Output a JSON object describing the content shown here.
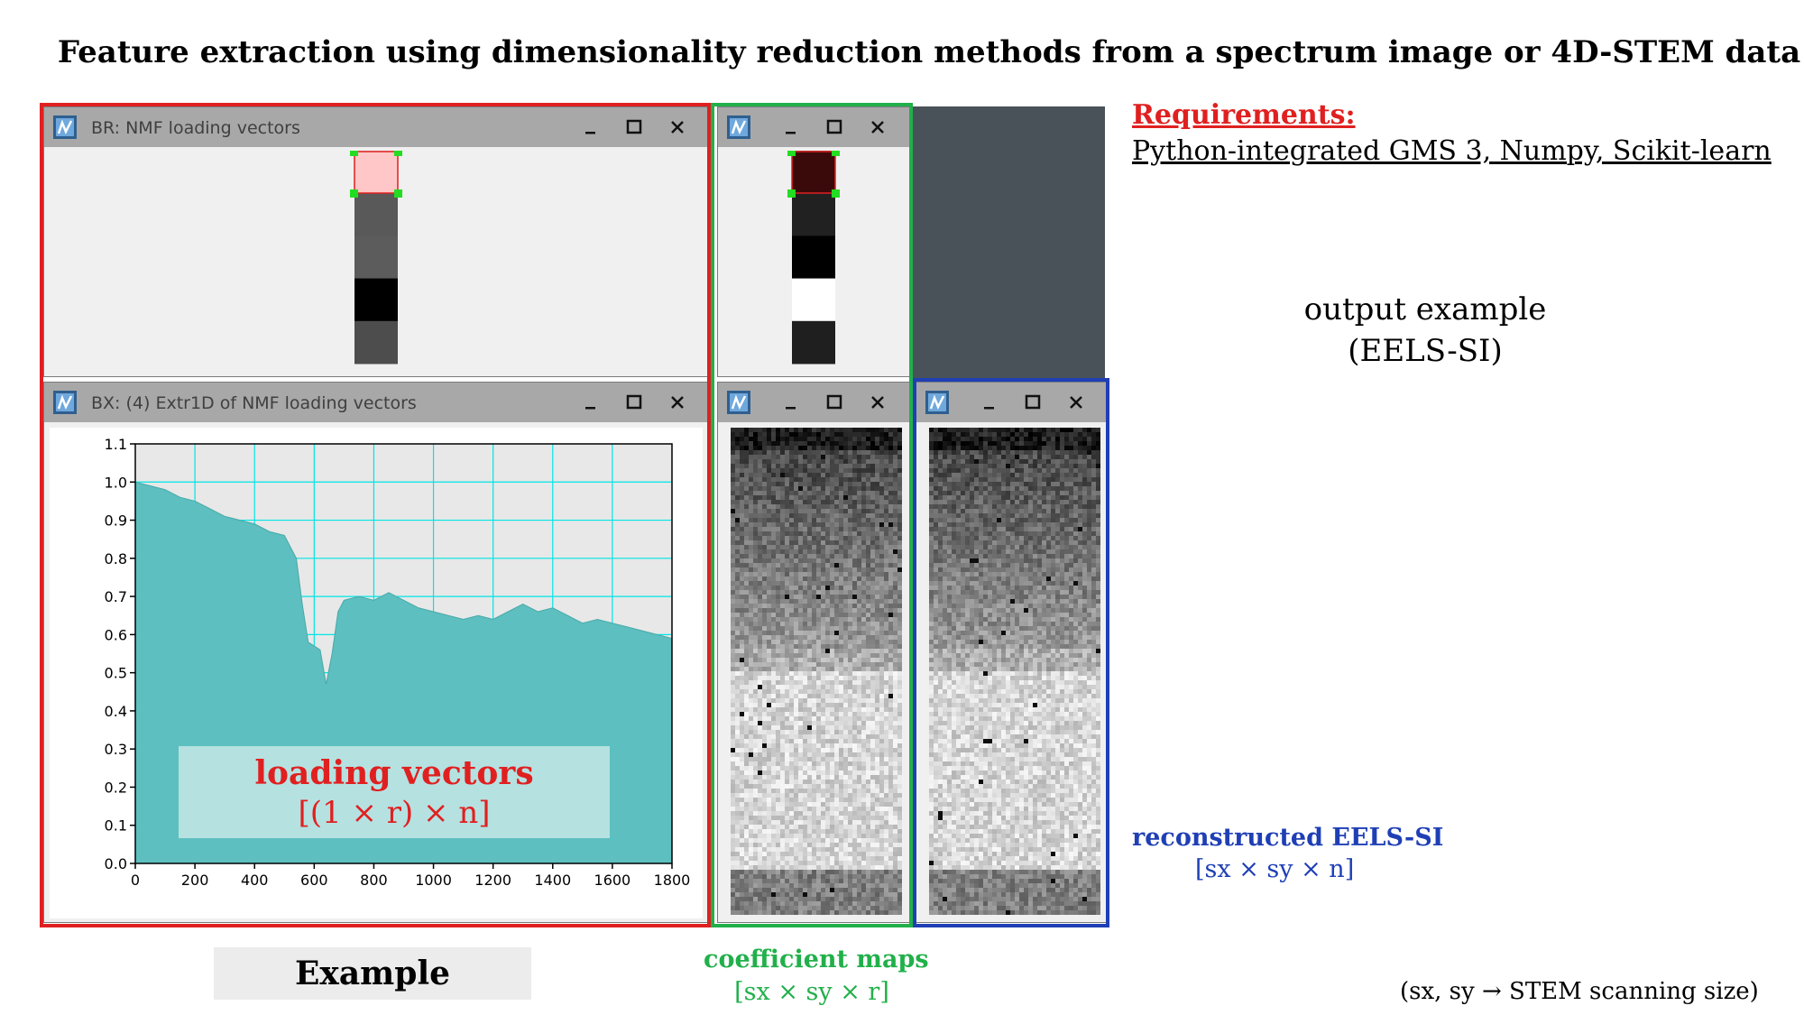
{
  "page": {
    "title": "Feature extraction using dimensionality reduction methods from a spectrum image or 4D-STEM data"
  },
  "windows": {
    "br": {
      "title": "BR: NMF loading vectors"
    },
    "bx": {
      "title": "BX: (4) Extr1D of NMF loading vectors"
    },
    "small1": {
      "title": ""
    },
    "small2": {
      "title": ""
    },
    "small3": {
      "title": ""
    },
    "controls": {
      "minimize": "_",
      "maximize": "☐",
      "close": "✕"
    }
  },
  "requirements": {
    "label": "Requirements:",
    "text": "Python-integrated GMS 3, Numpy, Scikit-learn"
  },
  "output_example": {
    "line1": "output example",
    "line2": "(EELS-SI)"
  },
  "reconstructed": {
    "label": "reconstructed EELS-SI",
    "dim": "[sx × sy × n]"
  },
  "coefficient": {
    "label": "coefficient maps",
    "dim": "[sx × sy × r]"
  },
  "loading": {
    "label": "loading vectors",
    "dim": "[(1 × r) × n]"
  },
  "example_label": "Example",
  "footnote": "(sx, sy → STEM scanning size)",
  "colors": {
    "red_frame": "#e02020",
    "green_frame": "#21b04a",
    "blue_frame": "#1f3fb5",
    "spectrum_fill": "#5dbfbf",
    "grid": "#00e5e5",
    "plot_bg": "#e8e8e8"
  },
  "chart_data": {
    "type": "area",
    "title": "",
    "xlabel": "",
    "ylabel": "",
    "xlim": [
      0,
      1800
    ],
    "ylim": [
      0.0,
      1.1
    ],
    "x_ticks": [
      "0",
      "200",
      "400",
      "600",
      "800",
      "1000",
      "1200",
      "1400",
      "1600",
      "1800"
    ],
    "y_ticks": [
      "0.0",
      "0.1",
      "0.2",
      "0.3",
      "0.4",
      "0.5",
      "0.6",
      "0.7",
      "0.8",
      "0.9",
      "1.0",
      "1.1"
    ],
    "grid": true,
    "x": [
      0,
      50,
      100,
      150,
      200,
      250,
      300,
      350,
      400,
      450,
      500,
      540,
      560,
      580,
      600,
      620,
      640,
      660,
      680,
      700,
      750,
      800,
      850,
      900,
      950,
      1000,
      1050,
      1100,
      1150,
      1200,
      1250,
      1300,
      1350,
      1400,
      1450,
      1500,
      1550,
      1600,
      1650,
      1700,
      1750,
      1800
    ],
    "values": [
      1.0,
      0.99,
      0.98,
      0.96,
      0.95,
      0.93,
      0.91,
      0.9,
      0.89,
      0.87,
      0.86,
      0.8,
      0.68,
      0.58,
      0.57,
      0.56,
      0.47,
      0.55,
      0.66,
      0.69,
      0.7,
      0.69,
      0.71,
      0.69,
      0.67,
      0.66,
      0.65,
      0.64,
      0.65,
      0.64,
      0.66,
      0.68,
      0.66,
      0.67,
      0.65,
      0.63,
      0.64,
      0.63,
      0.62,
      0.61,
      0.6,
      0.59
    ]
  },
  "strip_levels": {
    "br": [
      0.85,
      0.35,
      0.36,
      0.0,
      0.3
    ],
    "small1": [
      0.25,
      0.13,
      0.0,
      1.0,
      0.12
    ]
  }
}
